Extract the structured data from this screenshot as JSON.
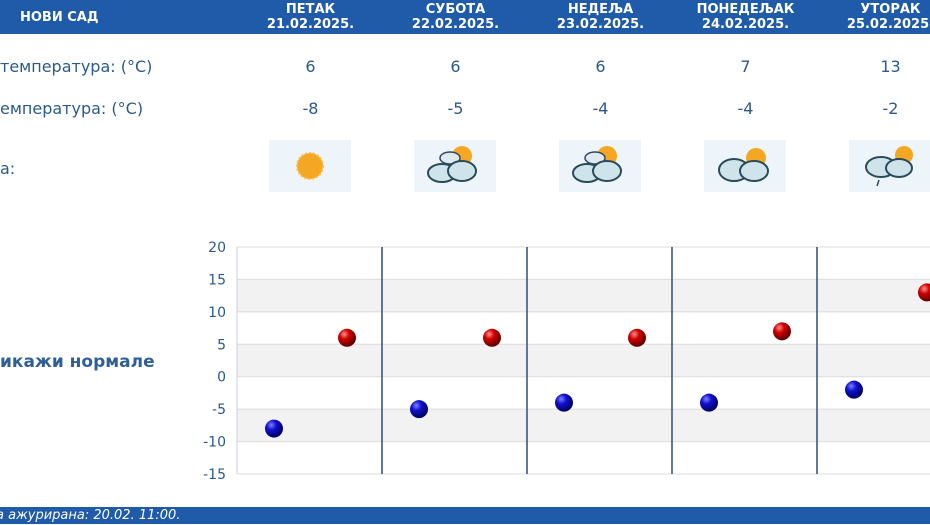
{
  "header": {
    "city": "НОВИ САД",
    "days": [
      {
        "name": "ПЕТАК",
        "date": "21.02.2025.",
        "max": "6",
        "min": "-8",
        "icon": "sunny-icon"
      },
      {
        "name": "СУБОТА",
        "date": "22.02.2025.",
        "max": "6",
        "min": "-5",
        "icon": "partly-cloudy-icon"
      },
      {
        "name": "НЕДЕЉА",
        "date": "23.02.2025.",
        "max": "6",
        "min": "-4",
        "icon": "partly-cloudy-icon"
      },
      {
        "name": "ПОНЕДЕЉАК",
        "date": "24.02.2025.",
        "max": "7",
        "min": "-4",
        "icon": "cloudy-sun-icon"
      },
      {
        "name": "УТОРАК",
        "date": "25.02.2025.",
        "max": "13",
        "min": "-2",
        "icon": "cloudy-rain-icon"
      }
    ]
  },
  "rows": {
    "max_label": "температура: (°C)",
    "min_label": "емпература: (°C)",
    "weather_label": "а:"
  },
  "normals_link": "икажи нормале",
  "chart_data": {
    "type": "scatter",
    "ylim": [
      -15,
      20
    ],
    "yticks": [
      "20",
      "15",
      "10",
      "5",
      "0",
      "-5",
      "-10",
      "-15"
    ],
    "series": [
      {
        "color": "#0000c0",
        "values": [
          -8,
          -5,
          -4,
          -4,
          -2
        ]
      },
      {
        "color": "#d00000",
        "values": [
          6,
          6,
          6,
          7,
          13
        ]
      }
    ],
    "grid": true
  },
  "footer": "а ажурирана:  20.02. 11:00."
}
